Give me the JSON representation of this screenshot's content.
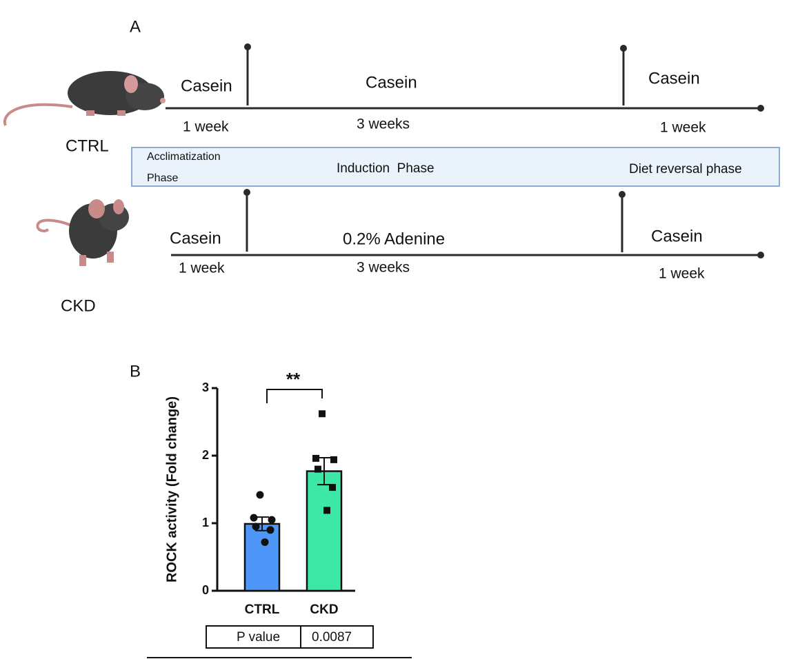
{
  "panel_a": {
    "label": "A",
    "groups": [
      {
        "name": "CTRL",
        "phases": [
          {
            "diet": "Casein",
            "duration": "1 week"
          },
          {
            "diet": "Casein",
            "duration": "3 weeks"
          },
          {
            "diet": "Casein",
            "duration": "1 week"
          }
        ]
      },
      {
        "name": "CKD",
        "phases": [
          {
            "diet": "Casein",
            "duration": "1 week"
          },
          {
            "diet": "0.2% Adenine",
            "duration": "3 weeks"
          },
          {
            "diet": "Casein",
            "duration": "1 week"
          }
        ]
      }
    ],
    "phase_names": [
      [
        "Acclimatization",
        "Phase"
      ],
      [
        "Induction  Phase"
      ],
      [
        "Diet reversal phase"
      ]
    ]
  },
  "panel_b_label": "B",
  "chart_data": {
    "type": "bar",
    "ylabel": "ROCK activity (Fold change)",
    "categories": [
      "CTRL",
      "CKD"
    ],
    "values": [
      0.99,
      1.77
    ],
    "errors": [
      0.1,
      0.2
    ],
    "points": [
      [
        1.42,
        1.08,
        1.05,
        0.95,
        0.9,
        0.72
      ],
      [
        2.62,
        1.96,
        1.94,
        1.8,
        1.53,
        1.19
      ]
    ],
    "colors": [
      "#4e97f8",
      "#3de8a6"
    ],
    "ylim": [
      0,
      3
    ],
    "yticks": [
      0,
      1,
      2,
      3
    ],
    "significance": "**",
    "p_table": [
      "P value",
      "0.0087"
    ]
  }
}
